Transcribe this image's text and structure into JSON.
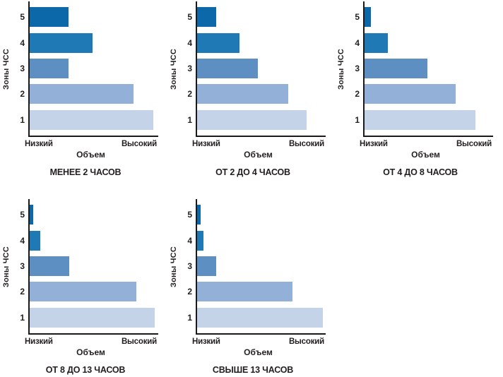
{
  "figure": {
    "description": "Five horizontal bar charts of training volume per heart-rate zone by weekly training duration",
    "text_color": "#231f20",
    "axis_color": "#1a1a1a",
    "background": "#ffffff"
  },
  "chart_data": [
    {
      "type": "bar",
      "orientation": "horizontal",
      "title": "МЕНЕЕ 2 ЧАСОВ",
      "categories": [
        "5",
        "4",
        "3",
        "2",
        "1"
      ],
      "values": [
        30,
        49,
        30,
        81,
        96
      ],
      "units": "relative volume, % of axis (Низкий→Высокий)",
      "xlabel": "Объем",
      "ylabel": "Зоны ЧСС",
      "x_tick_labels": [
        "Низкий",
        "Высокий"
      ],
      "xlim": [
        0,
        100
      ],
      "grid": false,
      "legend": "none",
      "bar_colors": [
        "#0c68a8",
        "#1e79b5",
        "#5d8fc2",
        "#93b1d8",
        "#c5d3e8"
      ]
    },
    {
      "type": "bar",
      "orientation": "horizontal",
      "title": "ОТ 2 ДО 4 ЧАСОВ",
      "categories": [
        "5",
        "4",
        "3",
        "2",
        "1"
      ],
      "values": [
        15,
        33,
        47,
        71,
        85
      ],
      "units": "relative volume, % of axis (Низкий→Высокий)",
      "xlabel": "Объем",
      "ylabel": "Зоны ЧСС",
      "x_tick_labels": [
        "Низкий",
        "Высокий"
      ],
      "xlim": [
        0,
        100
      ],
      "grid": false,
      "legend": "none",
      "bar_colors": [
        "#0c68a8",
        "#1e79b5",
        "#5d8fc2",
        "#93b1d8",
        "#c5d3e8"
      ]
    },
    {
      "type": "bar",
      "orientation": "horizontal",
      "title": "ОТ 4 ДО 8 ЧАСОВ",
      "categories": [
        "5",
        "4",
        "3",
        "2",
        "1"
      ],
      "values": [
        5,
        18,
        49,
        71,
        86
      ],
      "units": "relative volume, % of axis (Низкий→Высокий)",
      "xlabel": "Объем",
      "ylabel": "Зоны ЧСС",
      "x_tick_labels": [
        "Низкий",
        "Высокий"
      ],
      "xlim": [
        0,
        100
      ],
      "grid": false,
      "legend": "none",
      "bar_colors": [
        "#0c68a8",
        "#1e79b5",
        "#5d8fc2",
        "#93b1d8",
        "#c5d3e8"
      ]
    },
    {
      "type": "bar",
      "orientation": "horizontal",
      "title": "ОТ 8 ДО 13 ЧАСОВ",
      "categories": [
        "5",
        "4",
        "3",
        "2",
        "1"
      ],
      "values": [
        3,
        8,
        31,
        83,
        97
      ],
      "units": "relative volume, % of axis (Низкий→Высокий)",
      "xlabel": "Объем",
      "ylabel": "Зоны ЧСС",
      "x_tick_labels": [
        "Низкий",
        "Высокий"
      ],
      "xlim": [
        0,
        100
      ],
      "grid": false,
      "legend": "none",
      "bar_colors": [
        "#0c68a8",
        "#1e79b5",
        "#5d8fc2",
        "#93b1d8",
        "#c5d3e8"
      ]
    },
    {
      "type": "bar",
      "orientation": "horizontal",
      "title": "СВЫШЕ 13 ЧАСОВ",
      "categories": [
        "5",
        "4",
        "3",
        "2",
        "1"
      ],
      "values": [
        3,
        5,
        15,
        74,
        98
      ],
      "units": "relative volume, % of axis (Низкий→Высокий)",
      "xlabel": "Объем",
      "ylabel": "Зоны ЧСС",
      "x_tick_labels": [
        "Низкий",
        "Высокий"
      ],
      "xlim": [
        0,
        100
      ],
      "grid": false,
      "legend": "none",
      "bar_colors": [
        "#0c68a8",
        "#1e79b5",
        "#5d8fc2",
        "#93b1d8",
        "#c5d3e8"
      ]
    }
  ]
}
